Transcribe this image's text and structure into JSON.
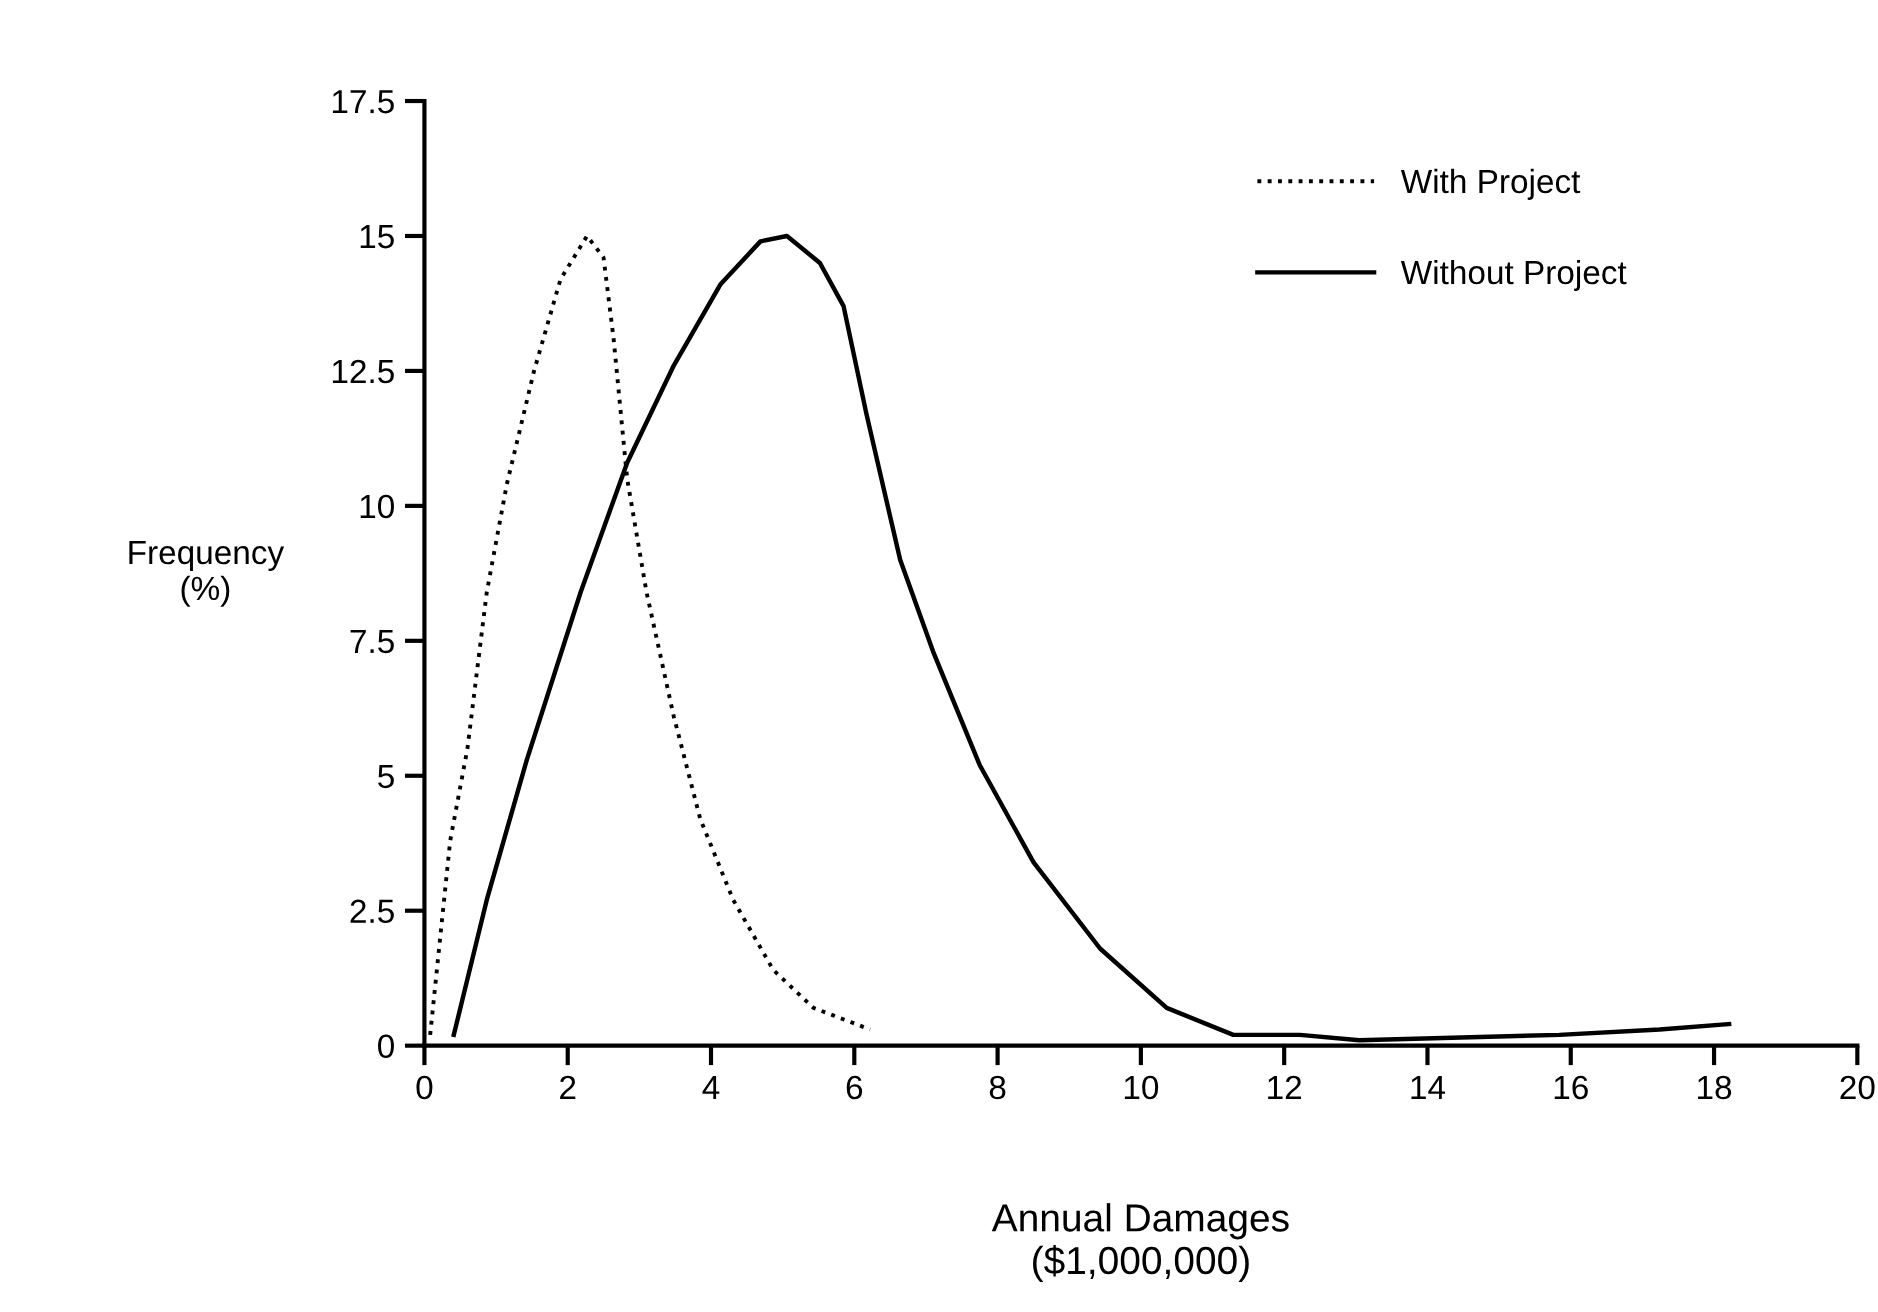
{
  "chart_data": {
    "type": "line",
    "xlabel": "Annual Damages\n($1,000,000)",
    "ylabel": "Frequency\n(%)",
    "xlim": [
      0,
      20
    ],
    "ylim": [
      0,
      17.5
    ],
    "xticks": [
      0,
      2,
      4,
      6,
      8,
      10,
      12,
      14,
      16,
      18,
      20
    ],
    "yticks": [
      0,
      2.5,
      5,
      7.5,
      10,
      12.5,
      15,
      17.5
    ],
    "grid": false,
    "legend": "top right",
    "marker": "none",
    "series": [
      {
        "name": "With Project",
        "color": "#000000",
        "line_style": "dotted",
        "x": [
          0.08,
          0.36,
          0.6,
          0.87,
          1.15,
          1.53,
          1.9,
          2.27,
          2.5,
          2.64,
          2.83,
          3.1,
          3.48,
          3.85,
          4.31,
          4.87,
          5.43,
          6.22
        ],
        "values": [
          0.2,
          3.8,
          5.5,
          8.4,
          10.4,
          12.5,
          14.2,
          15,
          14.6,
          13.1,
          10.5,
          8.4,
          6.1,
          4.2,
          2.7,
          1.4,
          0.7,
          0.3
        ]
      },
      {
        "name": "Without Project",
        "color": "#000000",
        "line_style": "solid",
        "x": [
          0.41,
          0.87,
          1.43,
          2.18,
          2.83,
          3.48,
          4.13,
          4.69,
          5.06,
          5.52,
          5.85,
          6.17,
          6.64,
          7.1,
          7.75,
          8.5,
          9.43,
          10.36,
          11.29,
          12.22,
          13.05,
          15.84,
          17.24,
          18.21
        ],
        "values": [
          0.2,
          2.7,
          5.3,
          8.4,
          10.8,
          12.6,
          14.1,
          14.9,
          15,
          14.5,
          13.7,
          11.7,
          9.0,
          7.3,
          5.2,
          3.4,
          1.8,
          0.7,
          0.2,
          0.2,
          0.1,
          0.2,
          0.3,
          0.4
        ]
      }
    ]
  }
}
